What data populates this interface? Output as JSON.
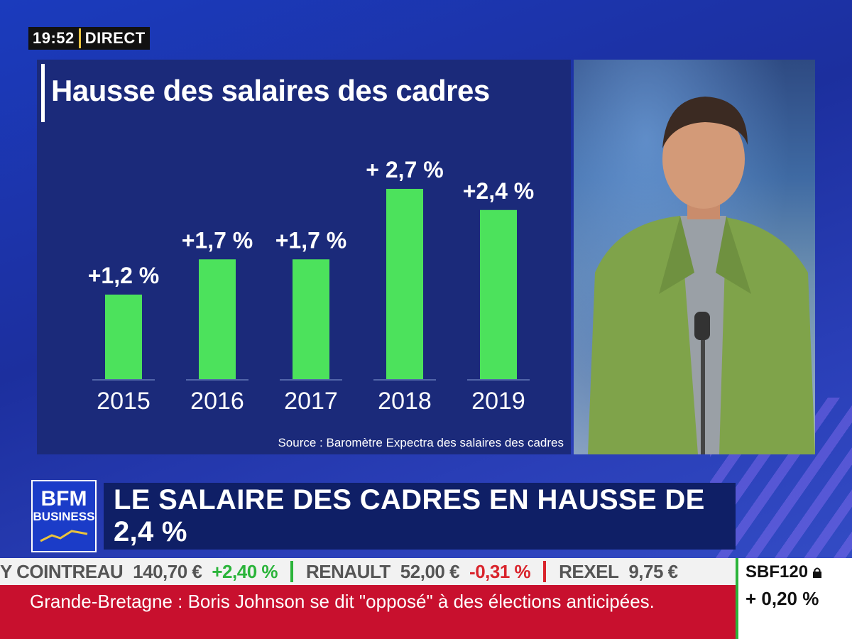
{
  "clock": {
    "time": "19:52",
    "live": "DIRECT"
  },
  "chart_data": {
    "type": "bar",
    "title": "Hausse des salaires des cadres",
    "categories": [
      "2015",
      "2016",
      "2017",
      "2018",
      "2019"
    ],
    "values": [
      1.2,
      1.7,
      1.7,
      2.7,
      2.4
    ],
    "data_labels": [
      "+1,2 %",
      "+1,7 %",
      "+1,7 %",
      "+ 2,7 %",
      "+2,4 %"
    ],
    "ylim": [
      0,
      2.7
    ],
    "grid": false,
    "bar_color": "#4ce25c",
    "source": "Source : Baromètre Expectra des salaires des cadres"
  },
  "logo": {
    "line1": "BFM",
    "line2": "BUSINESS"
  },
  "headline": "LE SALAIRE DES CADRES EN HAUSSE DE 2,4 %",
  "ticker": [
    {
      "name": "Y COINTREAU",
      "price": "140,70 €",
      "change": "+2,40 %",
      "trend": "up"
    },
    {
      "name": "RENAULT",
      "price": "52,00 €",
      "change": "-0,31 %",
      "trend": "down"
    },
    {
      "name": "REXEL",
      "price": "9,75 €",
      "change": "",
      "trend": "up"
    }
  ],
  "index": {
    "name": "SBF120",
    "value": "+ 0,20 %",
    "icon": "lock-icon"
  },
  "news": "Grande-Bretagne : Boris Johnson se dit \"opposé\" à des élections anticipées.",
  "colors": {
    "up": "#2bb43a",
    "down": "#d9242c",
    "news_bg": "#c8102e",
    "accent": "#e9c33d"
  }
}
